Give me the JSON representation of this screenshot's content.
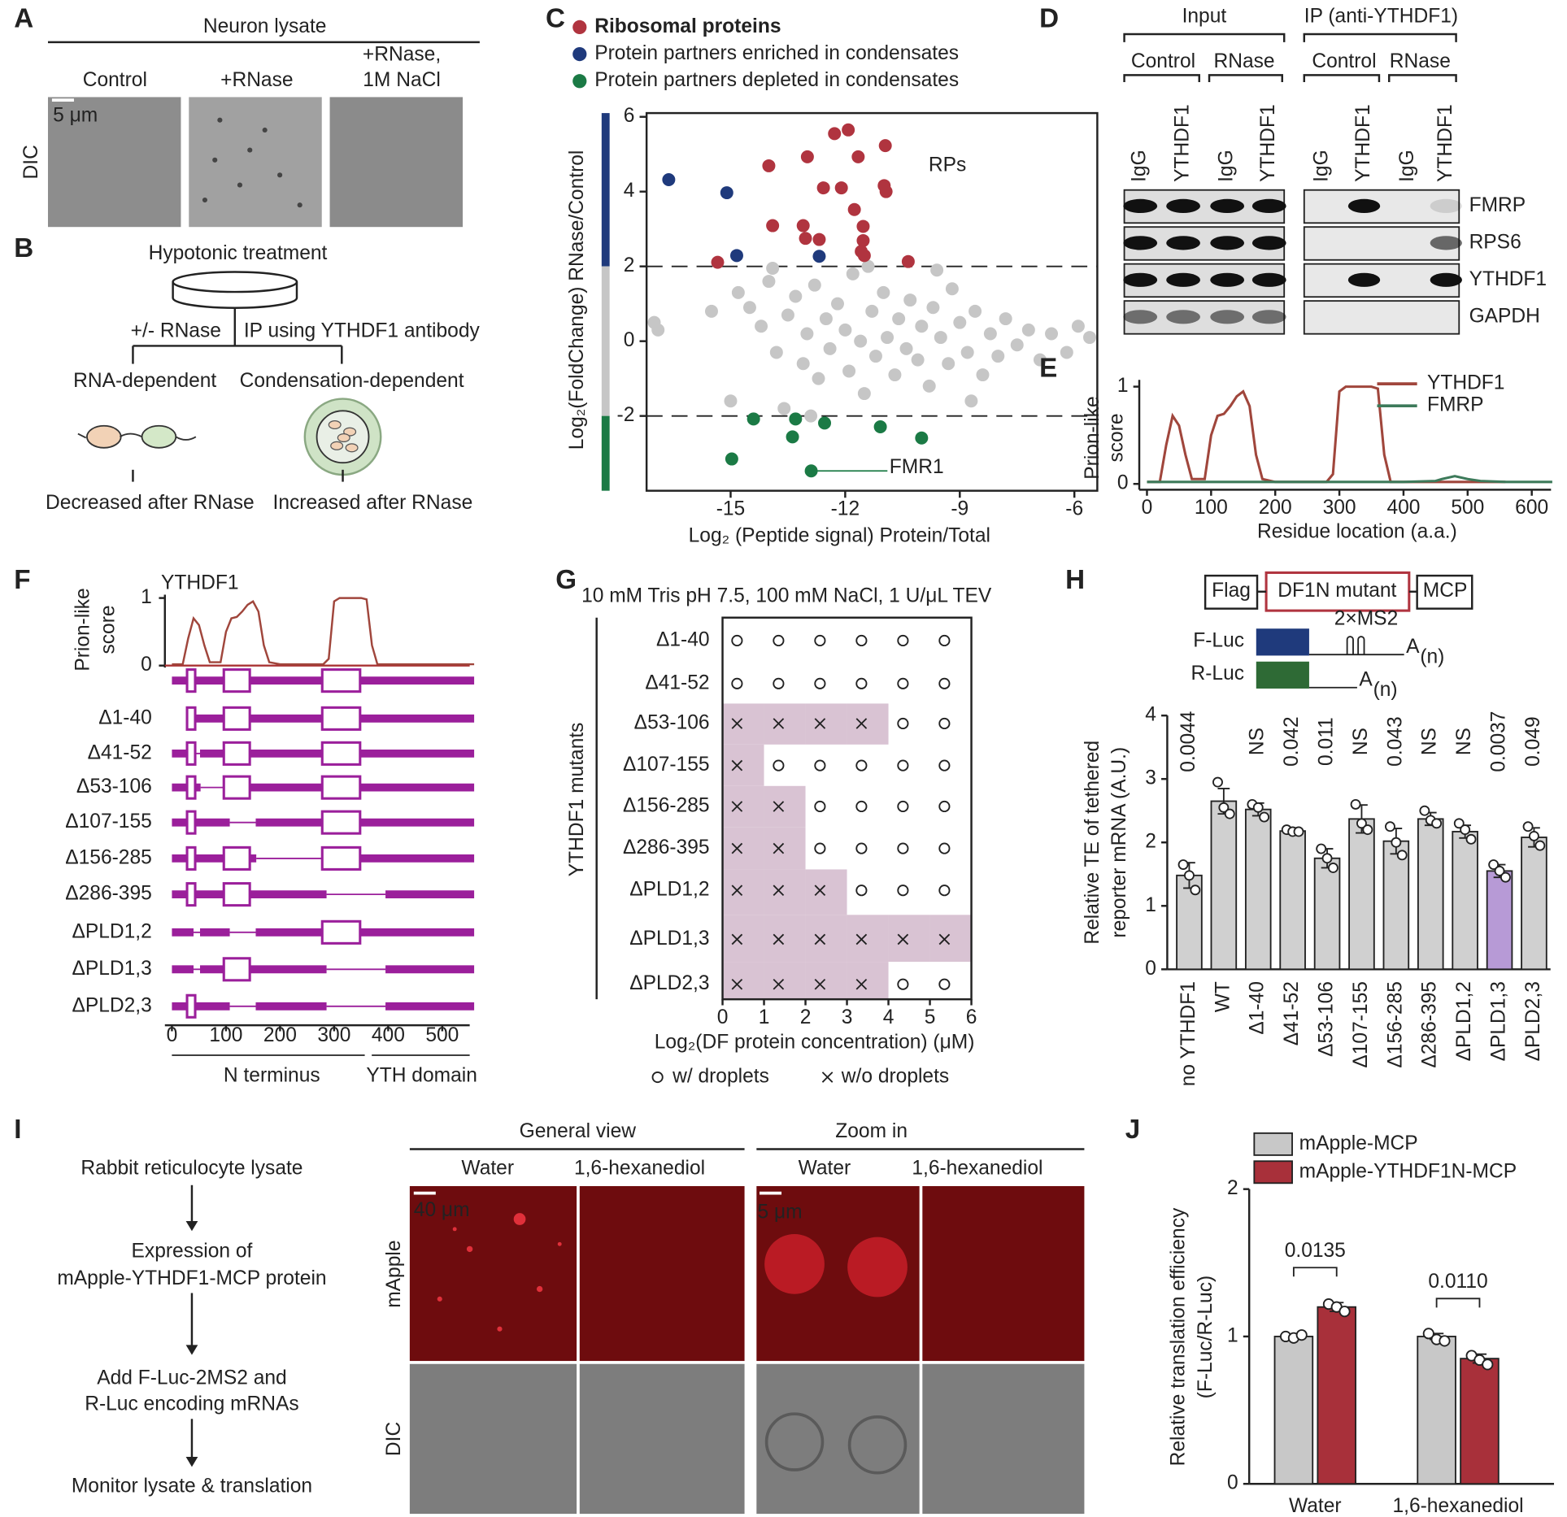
{
  "panels": {
    "A": {
      "label": "A",
      "title": "Neuron lysate",
      "conditions": [
        [
          "Control"
        ],
        [
          "+RNase"
        ],
        [
          "+RNase,",
          "1M NaCl"
        ]
      ],
      "row_label": "DIC",
      "scale_bar": "5 μm"
    },
    "B": {
      "label": "B",
      "top": "Hypotonic treatment",
      "left_branch": "+/- RNase",
      "right_branch": "IP using YTHDF1 antibody",
      "left_title": "RNA-dependent",
      "right_title": "Condensation-dependent",
      "left_result": "Decreased after RNase",
      "right_result": "Increased after RNase"
    },
    "D": {
      "label": "D",
      "groups": [
        "Input",
        "IP (anti-YTHDF1)"
      ],
      "conditions": [
        "Control",
        "RNase",
        "Control",
        "RNase"
      ],
      "lanes": [
        "IgG",
        "YTHDF1",
        "IgG",
        "YTHDF1",
        "IgG",
        "YTHDF1",
        "IgG",
        "YTHDF1"
      ],
      "proteins": [
        "FMRP",
        "RPS6",
        "YTHDF1",
        "GAPDH"
      ]
    },
    "F": {
      "label": "F",
      "protein": "YTHDF1",
      "ylabel": [
        "Prion-like",
        "score"
      ],
      "xlim": [
        -13,
        560
      ],
      "ylim": [
        0,
        1.05
      ],
      "yticks": [
        0,
        1
      ],
      "xticks": [
        0,
        100,
        200,
        300,
        400,
        500
      ],
      "constructs": [
        "Δ1-40",
        "Δ41-52",
        "Δ53-106",
        "Δ107-155",
        "Δ156-285",
        "Δ286-395",
        "ΔPLD1,2",
        "ΔPLD1,3",
        "ΔPLD2,3"
      ],
      "regions": [
        "N terminus",
        "YTH domain"
      ]
    },
    "G": {
      "label": "G",
      "title": "10 mM Tris pH 7.5, 100 mM NaCl, 1 U/μL TEV",
      "ylabel": "YTHDF1 mutants",
      "rows": [
        "Δ1-40",
        "Δ41-52",
        "Δ53-106",
        "Δ107-155",
        "Δ156-285",
        "Δ286-395",
        "ΔPLD1,2",
        "ΔPLD1,3",
        "ΔPLD2,3"
      ],
      "x": [
        0.35,
        1.35,
        2.35,
        3.35,
        4.35,
        5.35
      ],
      "droplets": [
        [
          true,
          true,
          true,
          true,
          true,
          true
        ],
        [
          true,
          true,
          true,
          true,
          true,
          true
        ],
        [
          false,
          false,
          false,
          false,
          true,
          true
        ],
        [
          false,
          true,
          true,
          true,
          true,
          true
        ],
        [
          false,
          false,
          true,
          true,
          true,
          true
        ],
        [
          false,
          false,
          true,
          true,
          true,
          true
        ],
        [
          false,
          false,
          false,
          true,
          true,
          true
        ],
        [
          false,
          false,
          false,
          false,
          false,
          false
        ],
        [
          false,
          false,
          false,
          false,
          true,
          true
        ]
      ],
      "xlim": [
        0,
        6
      ],
      "xticks": [
        0,
        1,
        2,
        3,
        4,
        5,
        6
      ],
      "xlabel": "Log₂(DF protein concentration) (μM)",
      "legend": [
        "w/ droplets",
        "w/o droplets"
      ]
    },
    "H": {
      "label": "H",
      "construct": [
        "Flag",
        "DF1N mutant",
        "MCP"
      ],
      "ms2": "2×MS2",
      "reporters": [
        "F-Luc",
        "R-Luc"
      ],
      "polyA": "A",
      "polyA_sub": "(n)"
    },
    "I": {
      "label": "I",
      "steps": [
        [
          "Rabbit reticulocyte lysate"
        ],
        [
          "Expression of",
          "mApple-YTHDF1-MCP protein"
        ],
        [
          "Add F-Luc-2MS2 and",
          "R-Luc encoding mRNAs"
        ],
        [
          "Monitor lysate & translation"
        ]
      ],
      "views": [
        "General view",
        "Zoom in"
      ],
      "treatments": [
        "Water",
        "1,6-hexanediol",
        "Water",
        "1,6-hexanediol"
      ],
      "channels": [
        "mApple",
        "DIC"
      ],
      "scale_bars": [
        "40 μm",
        "5 μm"
      ]
    }
  },
  "chart_data": [
    {
      "panel": "C",
      "type": "scatter",
      "xlabel": "Log₂ (Peptide signal) Protein/Total",
      "ylabel": "Log₂(FoldChange) RNase/Control",
      "xlim": [
        -17.2,
        -5.4
      ],
      "ylim": [
        -4,
        6.1
      ],
      "xticks": [
        -15,
        -12,
        -9,
        -6
      ],
      "yticks": [
        -2,
        0,
        2,
        4,
        6
      ],
      "thresholds": [
        2,
        -2
      ],
      "series": [
        {
          "color": "#c6c6c6",
          "x": [
            -17.0,
            -16.9,
            -15.5,
            -14.8,
            -14.5,
            -14.2,
            -14.0,
            -13.8,
            -13.5,
            -13.3,
            -13.1,
            -13.0,
            -12.8,
            -12.7,
            -12.5,
            -12.4,
            -12.2,
            -12.0,
            -11.9,
            -11.8,
            -11.6,
            -11.5,
            -11.3,
            -11.2,
            -11.0,
            -10.9,
            -10.7,
            -10.6,
            -10.4,
            -10.3,
            -10.1,
            -10.0,
            -9.8,
            -9.7,
            -9.5,
            -9.3,
            -9.2,
            -9.0,
            -8.8,
            -8.6,
            -8.4,
            -8.2,
            -8.0,
            -7.8,
            -7.5,
            -7.2,
            -6.9,
            -6.6,
            -6.2,
            -5.9,
            -5.6,
            -13.6,
            -12.9,
            -15.0,
            -9.6,
            -11.4,
            -13.9,
            -8.7
          ],
          "values": [
            0.5,
            0.3,
            0.8,
            1.3,
            0.9,
            0.4,
            1.6,
            -0.3,
            0.7,
            1.2,
            -0.6,
            0.2,
            1.5,
            -1.0,
            0.6,
            -0.2,
            1.0,
            0.3,
            -0.8,
            1.8,
            0.0,
            -1.4,
            0.8,
            -0.4,
            1.3,
            0.1,
            -0.9,
            0.6,
            -0.2,
            1.1,
            -0.5,
            0.4,
            -1.2,
            0.9,
            0.1,
            -0.6,
            1.4,
            0.5,
            -0.3,
            0.8,
            -0.9,
            0.2,
            -0.4,
            0.6,
            -0.1,
            0.3,
            -0.5,
            0.2,
            -0.3,
            0.4,
            0.1,
            -1.8,
            -2.0,
            -1.6,
            1.9,
            2.0,
            1.95,
            -1.6
          ]
        },
        {
          "name": "Ribosomal proteins",
          "color": "#b0343f",
          "x": [
            -12.28,
            -11.92,
            -14.0,
            -12.99,
            -11.66,
            -10.95,
            -12.57,
            -12.1,
            -10.98,
            -10.93,
            -11.76,
            -13.9,
            -13.1,
            -13.04,
            -12.68,
            -11.53,
            -11.53,
            -11.58,
            -11.5,
            -15.34,
            -10.35
          ],
          "values": [
            5.55,
            5.65,
            4.69,
            4.93,
            4.93,
            5.23,
            4.1,
            4.1,
            4.16,
            4.0,
            3.52,
            3.09,
            3.09,
            2.75,
            2.72,
            3.07,
            2.69,
            2.4,
            2.29,
            2.11,
            2.13
          ]
        },
        {
          "name": "Protein partners enriched in condensates",
          "color": "#1f3a7c",
          "x": [
            -16.62,
            -15.1,
            -14.84,
            -12.68
          ],
          "values": [
            4.32,
            3.97,
            2.29,
            2.27
          ]
        },
        {
          "name": "Protein partners depleted in condensates",
          "color": "#1b7a45",
          "x": [
            -14.4,
            -13.3,
            -12.54,
            -13.38,
            -11.08,
            -10.0,
            -14.97,
            -12.89
          ],
          "values": [
            -2.08,
            -2.08,
            -2.19,
            -2.56,
            -2.29,
            -2.59,
            -3.15,
            -3.47
          ]
        }
      ],
      "annotations": [
        "RPs",
        "FMR1"
      ]
    },
    {
      "panel": "E",
      "type": "line",
      "xlabel": "Residue location (a.a.)",
      "ylabel": [
        "Prion-like",
        "score"
      ],
      "xlim": [
        -12,
        630
      ],
      "ylim": [
        -0.06,
        1.07
      ],
      "xticks": [
        0,
        100,
        200,
        300,
        400,
        500,
        600
      ],
      "yticks": [
        0,
        1
      ],
      "legend": "upper right",
      "series": [
        {
          "name": "YTHDF1",
          "color": "#a0463c",
          "x": [
            0,
            20,
            30,
            40,
            50,
            60,
            70,
            90,
            100,
            110,
            120,
            130,
            140,
            150,
            160,
            170,
            180,
            200,
            220,
            280,
            290,
            300,
            310,
            350,
            360,
            370,
            380,
            450,
            500,
            559
          ],
          "values": [
            0.02,
            0.02,
            0.4,
            0.7,
            0.6,
            0.3,
            0.05,
            0.05,
            0.5,
            0.7,
            0.72,
            0.8,
            0.9,
            0.95,
            0.8,
            0.3,
            0.05,
            0.02,
            0.02,
            0.02,
            0.1,
            0.95,
            1,
            1,
            0.98,
            0.3,
            0.02,
            0.02,
            0.02,
            0.02
          ]
        },
        {
          "name": "FMRP",
          "color": "#3d7a5a",
          "x": [
            0,
            100,
            200,
            300,
            400,
            450,
            460,
            480,
            500,
            520,
            560,
            600,
            632
          ],
          "values": [
            0.02,
            0.02,
            0.02,
            0.02,
            0.02,
            0.03,
            0.05,
            0.08,
            0.05,
            0.03,
            0.02,
            0.02,
            0.02
          ]
        }
      ]
    },
    {
      "panel": "H",
      "type": "bar",
      "ylabel": [
        "Relative TE of tethered",
        "reporter mRNA (A.U.)"
      ],
      "categories": [
        "no YTHDF1",
        "WT",
        "Δ1-40",
        "Δ41-52",
        "Δ53-106",
        "Δ107-155",
        "Δ156-285",
        "Δ286-395",
        "ΔPLD1,2",
        "ΔPLD1,3",
        "ΔPLD2,3"
      ],
      "values": [
        1.48,
        2.65,
        2.52,
        2.18,
        1.75,
        2.37,
        2.02,
        2.37,
        2.17,
        1.55,
        2.08
      ],
      "errors": [
        0.2,
        0.2,
        0.1,
        0.05,
        0.15,
        0.22,
        0.2,
        0.1,
        0.1,
        0.1,
        0.15
      ],
      "points": [
        [
          1.65,
          1.48,
          1.25
        ],
        [
          2.95,
          2.55,
          2.45
        ],
        [
          2.6,
          2.55,
          2.4
        ],
        [
          2.2,
          2.17,
          2.17
        ],
        [
          1.9,
          1.75,
          1.6
        ],
        [
          2.6,
          2.3,
          2.2
        ],
        [
          2.25,
          2.0,
          1.8
        ],
        [
          2.5,
          2.35,
          2.3
        ],
        [
          2.3,
          2.2,
          2.05
        ],
        [
          1.65,
          1.55,
          1.45
        ],
        [
          2.25,
          2.1,
          1.95
        ]
      ],
      "colors": [
        "#d0d0d0",
        "#d0d0d0",
        "#d0d0d0",
        "#d0d0d0",
        "#d0d0d0",
        "#d0d0d0",
        "#d0d0d0",
        "#d0d0d0",
        "#d0d0d0",
        "#b79ad6",
        "#d0d0d0"
      ],
      "annotations": [
        "0.0044",
        null,
        "NS",
        "0.042",
        "0.011",
        "NS",
        "0.043",
        "NS",
        "NS",
        "0.0037",
        "0.049"
      ],
      "ylim": [
        0,
        4
      ],
      "yticks": [
        0,
        1,
        2,
        3,
        4
      ]
    },
    {
      "panel": "J",
      "type": "bar",
      "ylabel": [
        "Relative translation efficiency",
        "(F-Luc/R-Luc)"
      ],
      "categories": [
        "Water",
        "1,6-hexanediol"
      ],
      "legend": "upper left",
      "series": [
        {
          "name": "mApple-MCP",
          "color": "#c8c8c8",
          "values": [
            1.0,
            1.0
          ],
          "errors": [
            0.01,
            0.02
          ],
          "points": [
            [
              1.0,
              0.99,
              1.01
            ],
            [
              1.02,
              0.98,
              0.97
            ]
          ]
        },
        {
          "name": "mApple-YTHDF1N-MCP",
          "color": "#a8303a",
          "values": [
            1.2,
            0.85
          ],
          "errors": [
            0.03,
            0.03
          ],
          "points": [
            [
              1.22,
              1.2,
              1.17
            ],
            [
              0.87,
              0.84,
              0.81
            ]
          ]
        }
      ],
      "comparisons": [
        "0.0135",
        "0.0110"
      ],
      "ylim": [
        0,
        2
      ],
      "yticks": [
        0,
        1,
        2
      ]
    }
  ]
}
